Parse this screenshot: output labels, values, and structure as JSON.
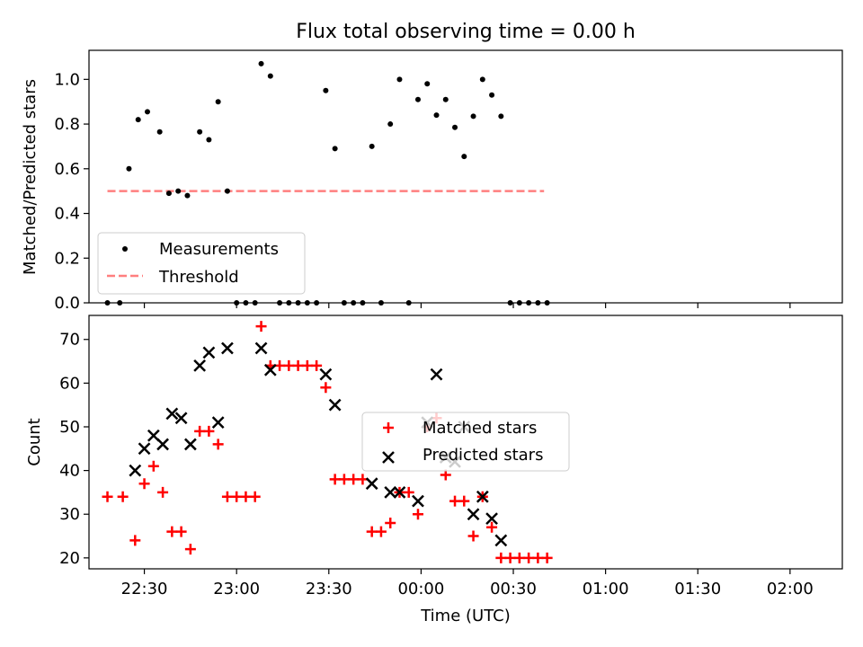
{
  "chart_data": [
    {
      "type": "scatter",
      "title": "Flux total observing time = 0.00 h",
      "xlabel": "",
      "ylabel": "Matched/Predicted stars",
      "xlim": [
        "22:12",
        "02:17"
      ],
      "ylim": [
        0,
        1.13
      ],
      "yticks": [
        "0.0",
        "0.2",
        "0.4",
        "0.6",
        "0.8",
        "1.0"
      ],
      "legend": {
        "placement": "lower-left",
        "entries": [
          "Measurements",
          "Threshold"
        ]
      },
      "series": [
        {
          "name": "Measurements",
          "color": "#000000",
          "marker": "dot",
          "points": [
            [
              "22:18",
              0
            ],
            [
              "22:22",
              0
            ],
            [
              "22:25",
              0.6
            ],
            [
              "22:28",
              0.82
            ],
            [
              "22:31",
              0.855
            ],
            [
              "22:35",
              0.765
            ],
            [
              "22:38",
              0.49
            ],
            [
              "22:41",
              0.5
            ],
            [
              "22:44",
              0.48
            ],
            [
              "22:48",
              0.765
            ],
            [
              "22:51",
              0.73
            ],
            [
              "22:54",
              0.9
            ],
            [
              "22:57",
              0.5
            ],
            [
              "23:00",
              0
            ],
            [
              "23:03",
              0
            ],
            [
              "23:06",
              0
            ],
            [
              "23:08",
              1.07
            ],
            [
              "23:11",
              1.015
            ],
            [
              "23:14",
              0
            ],
            [
              "23:17",
              0
            ],
            [
              "23:20",
              0
            ],
            [
              "23:23",
              0
            ],
            [
              "23:26",
              0
            ],
            [
              "23:29",
              0.95
            ],
            [
              "23:32",
              0.69
            ],
            [
              "23:35",
              0
            ],
            [
              "23:38",
              0
            ],
            [
              "23:41",
              0
            ],
            [
              "23:44",
              0.7
            ],
            [
              "23:47",
              0
            ],
            [
              "23:50",
              0.8
            ],
            [
              "23:53",
              1.0
            ],
            [
              "23:56",
              0
            ],
            [
              "23:59",
              0.91
            ],
            [
              "00:02",
              0.98
            ],
            [
              "00:05",
              0.84
            ],
            [
              "00:08",
              0.91
            ],
            [
              "00:11",
              0.785
            ],
            [
              "00:14",
              0.655
            ],
            [
              "00:17",
              0.835
            ],
            [
              "00:20",
              1.0
            ],
            [
              "00:23",
              0.93
            ],
            [
              "00:26",
              0.835
            ],
            [
              "00:29",
              0
            ],
            [
              "00:32",
              0
            ],
            [
              "00:35",
              0
            ],
            [
              "00:38",
              0
            ],
            [
              "00:41",
              0
            ]
          ]
        },
        {
          "name": "Threshold",
          "color": "#ff7f7f",
          "style": "dashed",
          "points": [
            [
              "22:18",
              0.5
            ],
            [
              "00:40",
              0.5
            ]
          ]
        }
      ]
    },
    {
      "type": "scatter",
      "title": "",
      "xlabel": "Time (UTC)",
      "ylabel": "Count",
      "xlim": [
        "22:12",
        "02:17"
      ],
      "ylim": [
        17.5,
        75.5
      ],
      "xticks": [
        "22:30",
        "23:00",
        "23:30",
        "00:00",
        "00:30",
        "01:00",
        "01:30",
        "02:00"
      ],
      "yticks": [
        "20",
        "30",
        "40",
        "50",
        "60",
        "70"
      ],
      "legend": {
        "placement": "center",
        "entries": [
          "Matched stars",
          "Predicted stars"
        ]
      },
      "series": [
        {
          "name": "Matched stars",
          "color": "#ff0000",
          "marker": "plus",
          "points": [
            [
              "22:18",
              34
            ],
            [
              "22:23",
              34
            ],
            [
              "22:27",
              24
            ],
            [
              "22:30",
              37
            ],
            [
              "22:33",
              41
            ],
            [
              "22:36",
              35
            ],
            [
              "22:39",
              26
            ],
            [
              "22:42",
              26
            ],
            [
              "22:45",
              22
            ],
            [
              "22:48",
              49
            ],
            [
              "22:51",
              49
            ],
            [
              "22:54",
              46
            ],
            [
              "22:57",
              34
            ],
            [
              "23:00",
              34
            ],
            [
              "23:03",
              34
            ],
            [
              "23:06",
              34
            ],
            [
              "23:08",
              73
            ],
            [
              "23:11",
              64
            ],
            [
              "23:14",
              64
            ],
            [
              "23:17",
              64
            ],
            [
              "23:20",
              64
            ],
            [
              "23:23",
              64
            ],
            [
              "23:26",
              64
            ],
            [
              "23:29",
              59
            ],
            [
              "23:32",
              38
            ],
            [
              "23:35",
              38
            ],
            [
              "23:38",
              38
            ],
            [
              "23:41",
              38
            ],
            [
              "23:44",
              26
            ],
            [
              "23:47",
              26
            ],
            [
              "23:50",
              28
            ],
            [
              "23:53",
              35
            ],
            [
              "23:56",
              35
            ],
            [
              "23:59",
              30
            ],
            [
              "00:02",
              50
            ],
            [
              "00:05",
              52
            ],
            [
              "00:08",
              39
            ],
            [
              "00:11",
              33
            ],
            [
              "00:14",
              33
            ],
            [
              "00:17",
              25
            ],
            [
              "00:20",
              34
            ],
            [
              "00:23",
              27
            ],
            [
              "00:26",
              20
            ],
            [
              "00:29",
              20
            ],
            [
              "00:32",
              20
            ],
            [
              "00:35",
              20
            ],
            [
              "00:38",
              20
            ],
            [
              "00:41",
              20
            ]
          ]
        },
        {
          "name": "Predicted stars",
          "color": "#000000",
          "marker": "x",
          "points": [
            [
              "22:27",
              40
            ],
            [
              "22:30",
              45
            ],
            [
              "22:33",
              48
            ],
            [
              "22:36",
              46
            ],
            [
              "22:39",
              53
            ],
            [
              "22:42",
              52
            ],
            [
              "22:45",
              46
            ],
            [
              "22:48",
              64
            ],
            [
              "22:51",
              67
            ],
            [
              "22:54",
              51
            ],
            [
              "22:57",
              68
            ],
            [
              "23:08",
              68
            ],
            [
              "23:11",
              63
            ],
            [
              "23:29",
              62
            ],
            [
              "23:32",
              55
            ],
            [
              "23:44",
              37
            ],
            [
              "23:50",
              35
            ],
            [
              "23:53",
              35
            ],
            [
              "23:59",
              33
            ],
            [
              "00:02",
              51
            ],
            [
              "00:05",
              62
            ],
            [
              "00:08",
              43
            ],
            [
              "00:11",
              42
            ],
            [
              "00:14",
              50
            ],
            [
              "00:17",
              30
            ],
            [
              "00:20",
              34
            ],
            [
              "00:23",
              29
            ],
            [
              "00:26",
              24
            ]
          ]
        }
      ]
    }
  ]
}
